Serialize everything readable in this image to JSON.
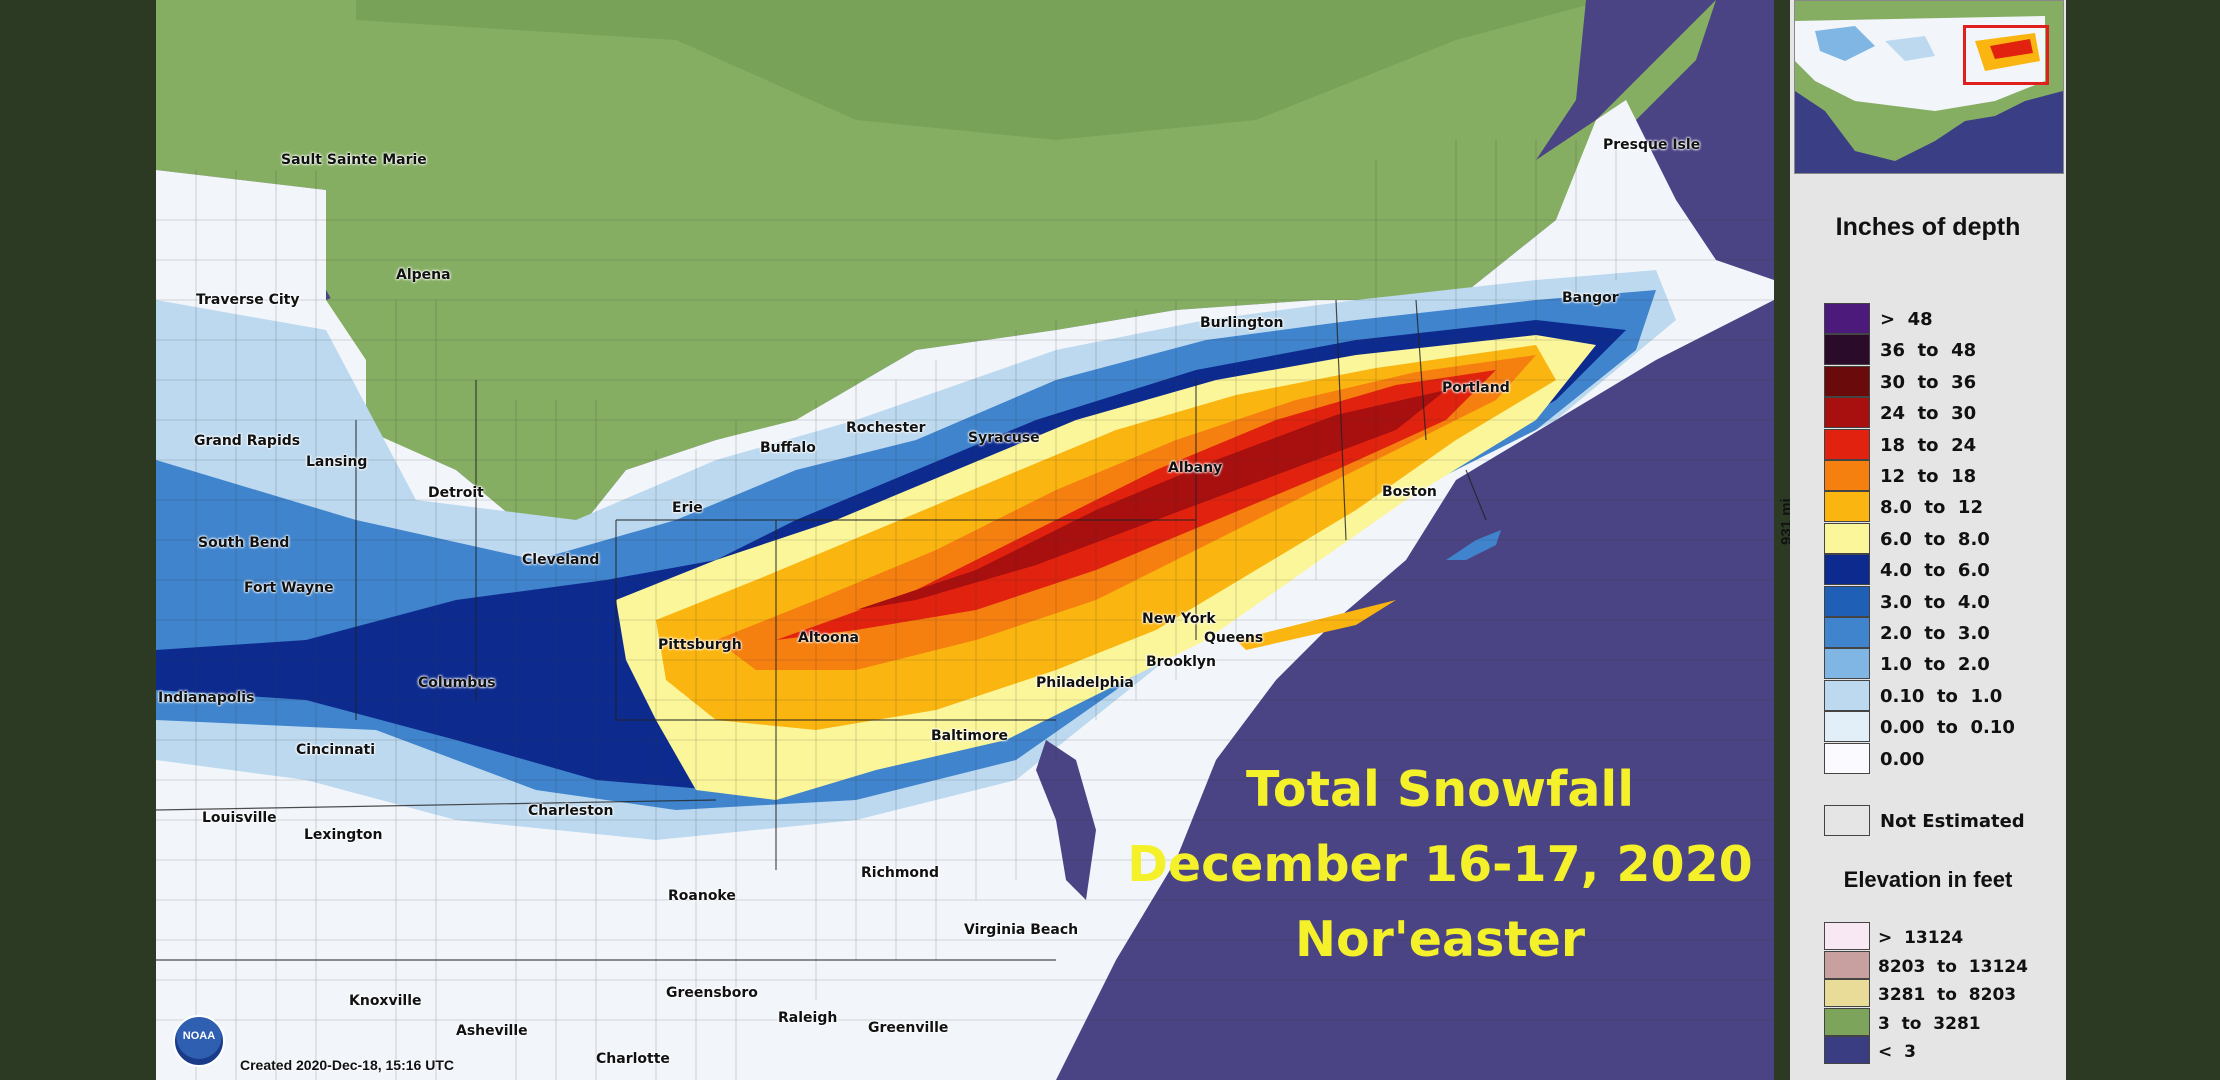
{
  "title": {
    "line1": "Total Snowfall",
    "line2": "December 16-17, 2020",
    "line3": "Nor'easter"
  },
  "credit": "Created 2020-Dec-18, 15:16 UTC",
  "logo": "NOAA",
  "scale_label": "931 mi",
  "legend": {
    "title": "Inches of depth",
    "bins": [
      {
        "label": ">  48",
        "color": "#4b1a7a"
      },
      {
        "label": "36  to  48",
        "color": "#2a0c2a"
      },
      {
        "label": "30  to  36",
        "color": "#6b0a0a"
      },
      {
        "label": "24  to  30",
        "color": "#a80f0f"
      },
      {
        "label": "18  to  24",
        "color": "#e0220e"
      },
      {
        "label": "12  to  18",
        "color": "#f57f0f"
      },
      {
        "label": "8.0  to  12",
        "color": "#fbb510"
      },
      {
        "label": "6.0  to  8.0",
        "color": "#fbf69a"
      },
      {
        "label": "4.0  to  6.0",
        "color": "#0d2b8f"
      },
      {
        "label": "3.0  to  4.0",
        "color": "#1f5fb5"
      },
      {
        "label": "2.0  to  3.0",
        "color": "#3f84cc"
      },
      {
        "label": "1.0  to  2.0",
        "color": "#7fb6e3"
      },
      {
        "label": "0.10  to  1.0",
        "color": "#bdd9ef"
      },
      {
        "label": "0.00  to  0.10",
        "color": "#e2eef8"
      },
      {
        "label": "0.00",
        "color": "#fbfbff"
      }
    ],
    "not_estimated": "Not Estimated"
  },
  "elevation": {
    "title": "Elevation in feet",
    "bins": [
      {
        "label": ">  13124",
        "color": "#f8e8f4"
      },
      {
        "label": "8203  to  13124",
        "color": "#c9a0a0"
      },
      {
        "label": "3281  to  8203",
        "color": "#e8dc98"
      },
      {
        "label": "3  to  3281",
        "color": "#7ca55b"
      },
      {
        "label": "<  3",
        "color": "#3a3d82"
      }
    ]
  },
  "cities": [
    {
      "name": "Sault Sainte Marie"
    },
    {
      "name": "Alpena"
    },
    {
      "name": "Traverse City"
    },
    {
      "name": "Grand Rapids"
    },
    {
      "name": "Lansing"
    },
    {
      "name": "Detroit"
    },
    {
      "name": "South Bend"
    },
    {
      "name": "Fort Wayne"
    },
    {
      "name": "Indianapolis"
    },
    {
      "name": "Cincinnati"
    },
    {
      "name": "Columbus"
    },
    {
      "name": "Cleveland"
    },
    {
      "name": "Erie"
    },
    {
      "name": "Buffalo"
    },
    {
      "name": "Rochester"
    },
    {
      "name": "Syracuse"
    },
    {
      "name": "Burlington"
    },
    {
      "name": "Albany"
    },
    {
      "name": "Portland"
    },
    {
      "name": "Bangor"
    },
    {
      "name": "Presque Isle"
    },
    {
      "name": "Boston"
    },
    {
      "name": "New York"
    },
    {
      "name": "Queens"
    },
    {
      "name": "Brooklyn"
    },
    {
      "name": "Philadelphia"
    },
    {
      "name": "Pittsburgh"
    },
    {
      "name": "Altoona"
    },
    {
      "name": "Baltimore"
    },
    {
      "name": "Charleston"
    },
    {
      "name": "Louisville"
    },
    {
      "name": "Lexington"
    },
    {
      "name": "Roanoke"
    },
    {
      "name": "Richmond"
    },
    {
      "name": "Virginia Beach"
    },
    {
      "name": "Knoxville"
    },
    {
      "name": "Asheville"
    },
    {
      "name": "Greensboro"
    },
    {
      "name": "Raleigh"
    },
    {
      "name": "Greenville"
    },
    {
      "name": "Charlotte"
    }
  ]
}
